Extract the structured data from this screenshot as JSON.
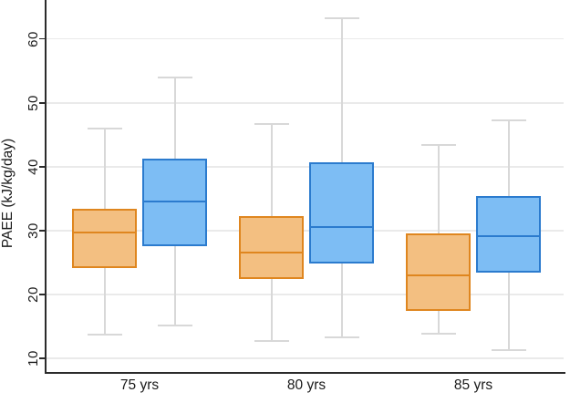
{
  "figure": {
    "ylabel": "PAEE (kJ/kg/day)"
  },
  "chart_data": {
    "type": "boxplot",
    "title": "",
    "xlabel": "",
    "ylabel": "PAEE (kJ/kg/day)",
    "categories": [
      "75 yrs",
      "80 yrs",
      "85 yrs"
    ],
    "yticks": [
      10,
      20,
      30,
      40,
      50,
      60
    ],
    "ylim": [
      7.7,
      66.1
    ],
    "grid": "horizontal-only",
    "legend": "none",
    "colors": {
      "orange_fill": "#F3BF81",
      "orange_border": "#DF861F",
      "blue_fill": "#7DBDF4",
      "blue_border": "#2B7BCE",
      "whisker": "#D8D8D8",
      "gridline": "#EAEAEA",
      "axis": "#2B2B2B"
    },
    "series": [
      {
        "name": "orange",
        "fill": "#F3BF81",
        "border": "#DF861F",
        "boxes": [
          {
            "category": "75 yrs",
            "low": 13.7,
            "q1": 24.1,
            "median": 29.7,
            "q3": 33.4,
            "high": 45.9
          },
          {
            "category": "80 yrs",
            "low": 12.7,
            "q1": 22.4,
            "median": 26.6,
            "q3": 32.3,
            "high": 46.7
          },
          {
            "category": "85 yrs",
            "low": 13.8,
            "q1": 17.4,
            "median": 23.0,
            "q3": 29.6,
            "high": 43.4
          }
        ]
      },
      {
        "name": "blue",
        "fill": "#7DBDF4",
        "border": "#2B7BCE",
        "boxes": [
          {
            "category": "75 yrs",
            "low": 15.1,
            "q1": 27.6,
            "median": 34.6,
            "q3": 41.2,
            "high": 53.9
          },
          {
            "category": "80 yrs",
            "low": 13.3,
            "q1": 24.8,
            "median": 30.5,
            "q3": 40.7,
            "high": 63.3
          },
          {
            "category": "85 yrs",
            "low": 11.3,
            "q1": 23.4,
            "median": 29.1,
            "q3": 35.4,
            "high": 47.2
          }
        ]
      }
    ]
  }
}
